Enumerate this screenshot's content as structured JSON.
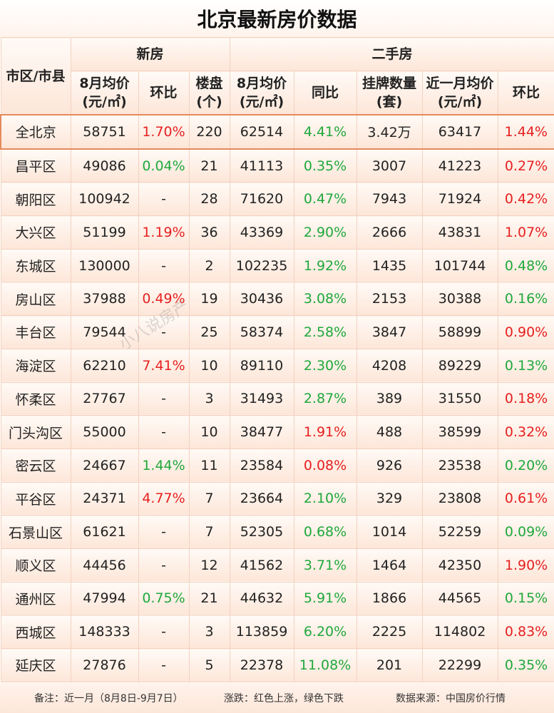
{
  "title": "北京最新房价数据",
  "header": {
    "district": "市区/市县",
    "new_house": "新房",
    "second_hand": "二手房",
    "cols": [
      "8月均价(元/㎡)",
      "环比",
      "楼盘(个)",
      "8月均价(元/㎡)",
      "同比",
      "挂牌数量(套)",
      "近一月均价(元/㎡)",
      "环比"
    ]
  },
  "rows": [
    [
      "全北京",
      "58751",
      "1.70%",
      "220",
      "62514",
      "4.41%",
      "3.42万",
      "63417",
      "1.44%"
    ],
    [
      "昌平区",
      "49086",
      "0.04%",
      "21",
      "41113",
      "0.35%",
      "3007",
      "41223",
      "0.27%"
    ],
    [
      "朝阳区",
      "100942",
      "-",
      "28",
      "71620",
      "0.47%",
      "7943",
      "71924",
      "0.42%"
    ],
    [
      "大兴区",
      "51199",
      "1.19%",
      "36",
      "43369",
      "2.90%",
      "2666",
      "43831",
      "1.07%"
    ],
    [
      "东城区",
      "130000",
      "-",
      "2",
      "102235",
      "1.92%",
      "1435",
      "101744",
      "0.48%"
    ],
    [
      "房山区",
      "37988",
      "0.49%",
      "19",
      "30436",
      "3.08%",
      "2153",
      "30388",
      "0.16%"
    ],
    [
      "丰台区",
      "79544",
      "-",
      "25",
      "58374",
      "2.58%",
      "3847",
      "58899",
      "0.90%"
    ],
    [
      "海淀区",
      "62210",
      "7.41%",
      "10",
      "89110",
      "2.30%",
      "4208",
      "89229",
      "0.13%"
    ],
    [
      "怀柔区",
      "27767",
      "-",
      "3",
      "31493",
      "2.87%",
      "389",
      "31550",
      "0.18%"
    ],
    [
      "门头沟区",
      "55000",
      "-",
      "10",
      "38477",
      "1.91%",
      "488",
      "38599",
      "0.32%"
    ],
    [
      "密云区",
      "24667",
      "1.44%",
      "11",
      "23584",
      "0.08%",
      "926",
      "23538",
      "0.20%"
    ],
    [
      "平谷区",
      "24371",
      "4.77%",
      "7",
      "23664",
      "2.10%",
      "329",
      "23808",
      "0.61%"
    ],
    [
      "石景山区",
      "61621",
      "-",
      "7",
      "52305",
      "0.68%",
      "1014",
      "52259",
      "0.09%"
    ],
    [
      "顺义区",
      "44456",
      "-",
      "12",
      "41562",
      "3.71%",
      "1464",
      "42350",
      "1.90%"
    ],
    [
      "通州区",
      "47994",
      "0.75%",
      "21",
      "44632",
      "5.91%",
      "1866",
      "44565",
      "0.15%"
    ],
    [
      "西城区",
      "148333",
      "-",
      "3",
      "113859",
      "6.20%",
      "2225",
      "114802",
      "0.83%"
    ],
    [
      "延庆区",
      "27876",
      "-",
      "5",
      "22378",
      "11.08%",
      "201",
      "22299",
      "0.35%"
    ]
  ],
  "colors": [
    [
      "",
      "",
      "red",
      "",
      "",
      "green",
      "",
      "",
      "red"
    ],
    [
      "",
      "",
      "green",
      "",
      "",
      "green",
      "",
      "",
      "red"
    ],
    [
      "",
      "",
      "",
      "",
      "",
      "green",
      "",
      "",
      "red"
    ],
    [
      "",
      "",
      "red",
      "",
      "",
      "green",
      "",
      "",
      "red"
    ],
    [
      "",
      "",
      "",
      "",
      "",
      "green",
      "",
      "",
      "green"
    ],
    [
      "",
      "",
      "red",
      "",
      "",
      "green",
      "",
      "",
      "green"
    ],
    [
      "",
      "",
      "",
      "",
      "",
      "green",
      "",
      "",
      "red"
    ],
    [
      "",
      "",
      "red",
      "",
      "",
      "green",
      "",
      "",
      "green"
    ],
    [
      "",
      "",
      "",
      "",
      "",
      "green",
      "",
      "",
      "red"
    ],
    [
      "",
      "",
      "",
      "",
      "",
      "red",
      "",
      "",
      "red"
    ],
    [
      "",
      "",
      "green",
      "",
      "",
      "red",
      "",
      "",
      "green"
    ],
    [
      "",
      "",
      "red",
      "",
      "",
      "green",
      "",
      "",
      "red"
    ],
    [
      "",
      "",
      "",
      "",
      "",
      "green",
      "",
      "",
      "green"
    ],
    [
      "",
      "",
      "",
      "",
      "",
      "green",
      "",
      "",
      "red"
    ],
    [
      "",
      "",
      "green",
      "",
      "",
      "green",
      "",
      "",
      "green"
    ],
    [
      "",
      "",
      "",
      "",
      "",
      "green",
      "",
      "",
      "red"
    ],
    [
      "",
      "",
      "",
      "",
      "",
      "green",
      "",
      "",
      "green"
    ]
  ],
  "footer": {
    "note": "备注：近一月（8月8日-9月7日）",
    "legend": "涨跌：红色上涨，绿色下跌",
    "source": "数据来源：中国房价行情"
  },
  "watermark": "小八说房产",
  "brand_colors": {
    "up": "#e62020",
    "down": "#1fa83c"
  }
}
